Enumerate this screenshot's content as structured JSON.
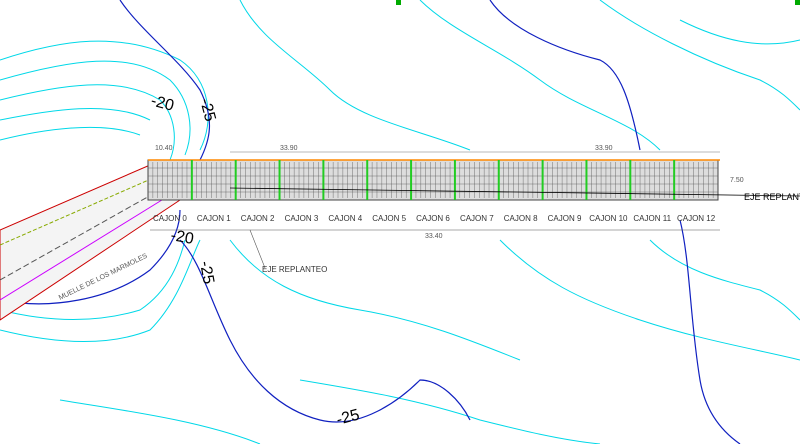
{
  "contours": [
    "-20",
    "-25",
    "-20",
    "-25",
    "-25"
  ],
  "dimensions": {
    "top_left": "33.90",
    "top_right": "33.90",
    "width": "7.50",
    "small": "10.40",
    "bottom": "33.40"
  },
  "axis_labels": {
    "main": "EJE REPLANTEO",
    "secondary": "EJE REPLANTEO"
  },
  "pier_label": "MUELLE DE LOS MARMOLES",
  "caissons": [
    "CAJON 0",
    "CAJON 1",
    "CAJON 2",
    "CAJON 3",
    "CAJON 4",
    "CAJON 5",
    "CAJON 6",
    "CAJON 7",
    "CAJON 8",
    "CAJON 9",
    "CAJON 10",
    "CAJON 11",
    "CAJON 12"
  ]
}
